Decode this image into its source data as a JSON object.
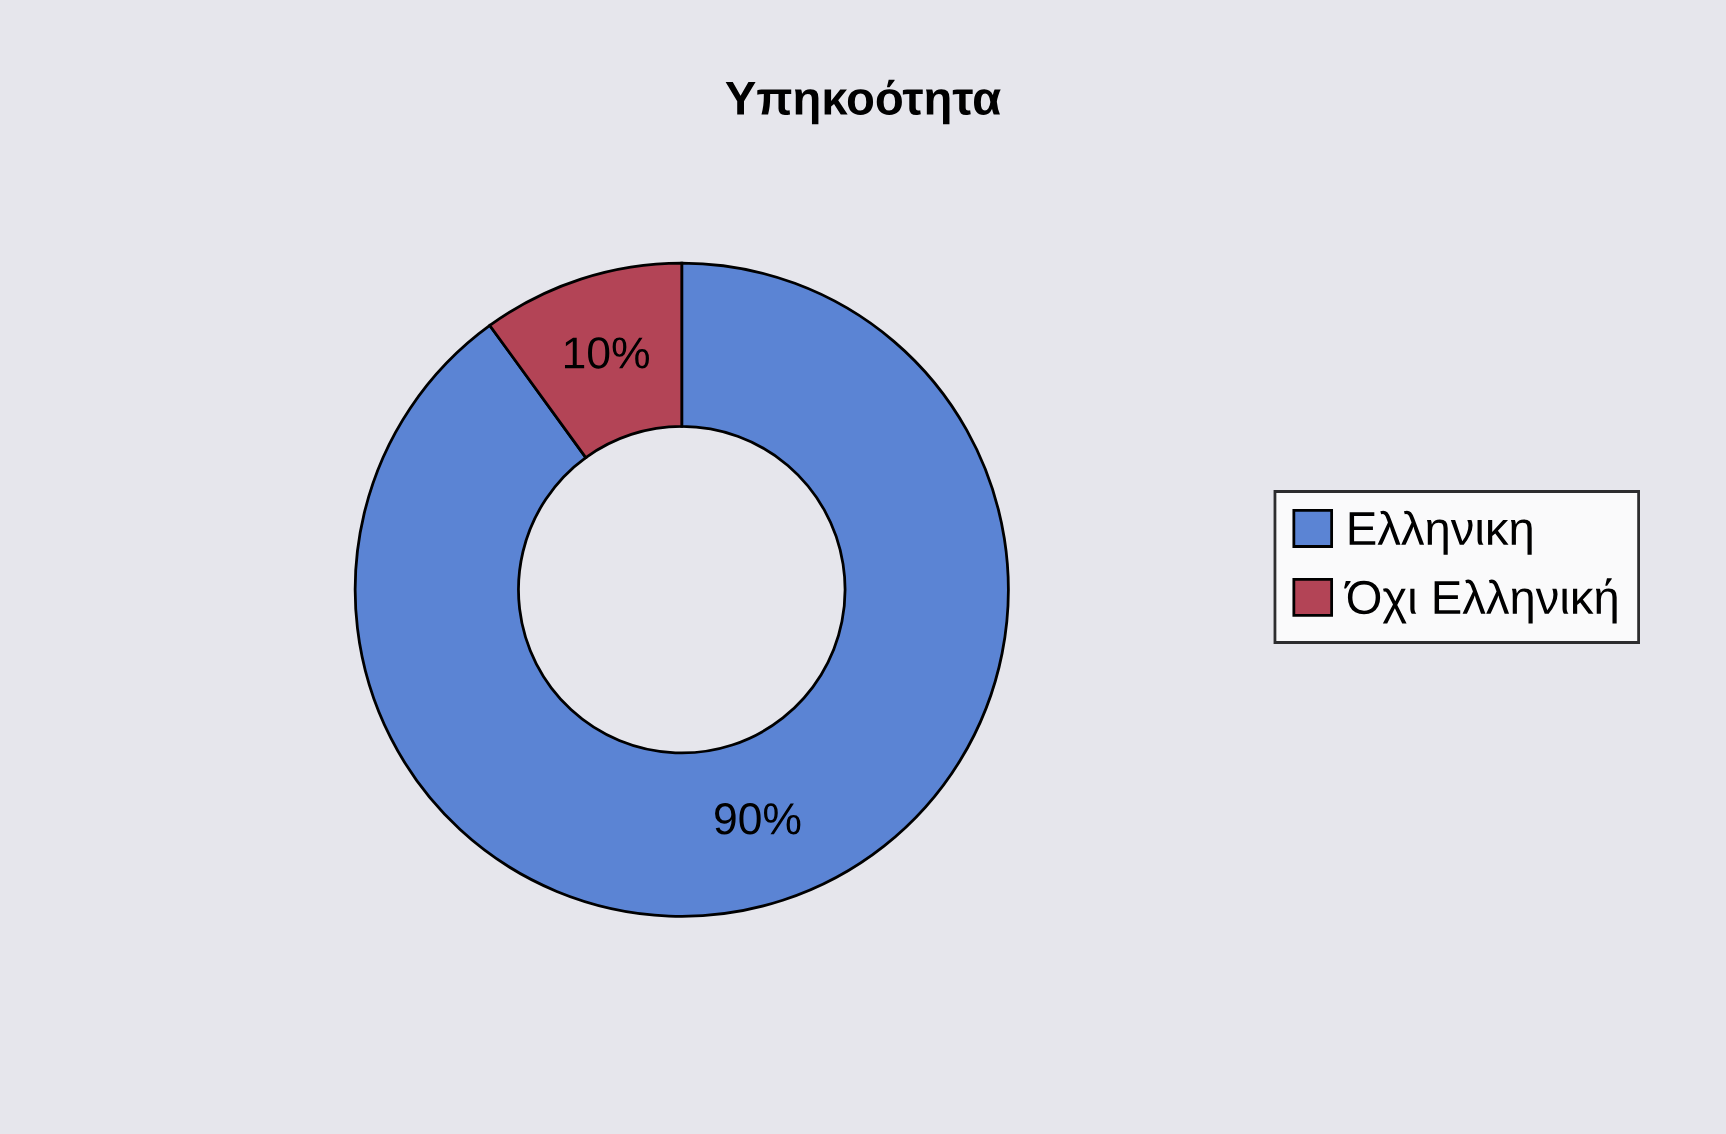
{
  "chart_data": {
    "type": "donut",
    "title": "Υπηκοότητα",
    "categories": [
      "Ελληνικη",
      "Όχι Ελληνική"
    ],
    "values": [
      90,
      10
    ],
    "colors": [
      "#5b84d4",
      "#b34456"
    ],
    "value_labels": [
      "90%",
      "10%"
    ],
    "legend": "right"
  }
}
